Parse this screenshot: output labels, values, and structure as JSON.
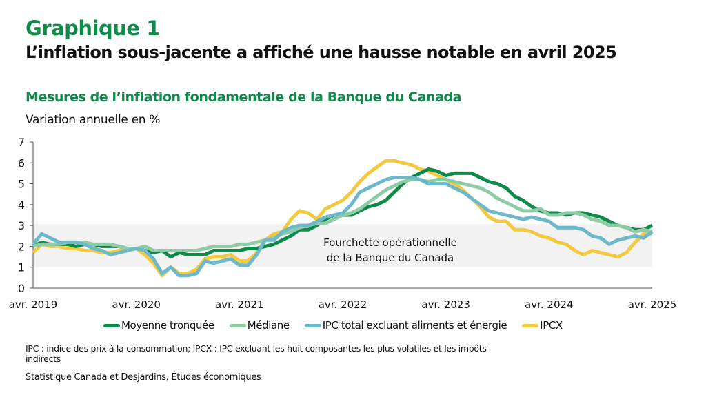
{
  "header": {
    "figure_label": "Graphique 1",
    "headline": "L’inflation sous-jacente a affiché une hausse notable en avril 2025"
  },
  "footer": {
    "note": "IPC : indice des prix à la consommation; IPCX : IPC excluant les huit composantes les plus volatiles et les impôts indirects",
    "source": "Statistique Canada et Desjardins, Études économiques"
  },
  "chart_data": {
    "type": "line",
    "title": "Mesures de l’inflation fondamentale de la Banque du Canada",
    "ylabel": "Variation annuelle en %",
    "xlabel": "",
    "ylim": [
      0,
      7
    ],
    "yticks": [
      "0",
      "1",
      "2",
      "3",
      "4",
      "5",
      "6",
      "7"
    ],
    "x_start": "2019-04",
    "x_end": "2025-04",
    "xtick_labels": [
      "avr. 2019",
      "avr. 2020",
      "avr. 2021",
      "avr. 2022",
      "avr. 2023",
      "avr. 2024",
      "avr. 2025"
    ],
    "grid": false,
    "legend_position": "bottom",
    "band": {
      "label_line1": "Fourchette opérationnelle",
      "label_line2": "de la Banque du Canada",
      "range": [
        1,
        3
      ],
      "color": "#f2f2f2"
    },
    "series": [
      {
        "name": "Moyenne tronquée",
        "color": "#0f8a4a",
        "values": [
          2.0,
          2.2,
          2.1,
          2.1,
          2.1,
          2.0,
          2.1,
          2.1,
          2.0,
          2.0,
          2.0,
          1.9,
          1.9,
          1.8,
          1.7,
          1.8,
          1.5,
          1.7,
          1.6,
          1.6,
          1.6,
          1.8,
          1.8,
          1.8,
          1.8,
          1.9,
          1.9,
          2.0,
          2.1,
          2.3,
          2.5,
          2.8,
          2.8,
          3.0,
          3.3,
          3.5,
          3.5,
          3.5,
          3.7,
          3.9,
          4.0,
          4.2,
          4.6,
          5.0,
          5.3,
          5.5,
          5.7,
          5.6,
          5.4,
          5.5,
          5.5,
          5.5,
          5.3,
          5.1,
          5.0,
          4.8,
          4.4,
          4.2,
          3.9,
          3.7,
          3.6,
          3.6,
          3.5,
          3.6,
          3.6,
          3.5,
          3.4,
          3.2,
          3.0,
          2.9,
          2.8,
          2.8,
          3.0
        ]
      },
      {
        "name": "Médiane",
        "color": "#8fcca6",
        "values": [
          2.0,
          2.1,
          2.1,
          2.1,
          2.2,
          2.2,
          2.2,
          2.1,
          2.1,
          2.1,
          2.0,
          1.9,
          1.9,
          2.0,
          1.8,
          1.8,
          1.8,
          1.8,
          1.8,
          1.8,
          1.9,
          2.0,
          2.0,
          2.0,
          2.1,
          2.1,
          2.2,
          2.3,
          2.4,
          2.6,
          2.7,
          2.9,
          3.0,
          3.1,
          3.1,
          3.3,
          3.5,
          3.6,
          3.8,
          4.1,
          4.4,
          4.7,
          4.9,
          5.1,
          5.2,
          5.2,
          5.1,
          5.2,
          5.2,
          5.1,
          5.0,
          4.9,
          4.8,
          4.6,
          4.3,
          4.1,
          3.9,
          3.7,
          3.7,
          3.8,
          3.5,
          3.5,
          3.6,
          3.6,
          3.5,
          3.3,
          3.2,
          3.0,
          3.0,
          2.9,
          2.7,
          2.8,
          2.7
        ]
      },
      {
        "name": "IPC total excluant aliments et énergie",
        "color": "#6db8c9",
        "values": [
          2.1,
          2.6,
          2.4,
          2.2,
          2.2,
          2.2,
          2.1,
          1.9,
          1.8,
          1.6,
          1.7,
          1.8,
          1.9,
          1.8,
          1.4,
          0.7,
          1.0,
          0.6,
          0.6,
          0.7,
          1.3,
          1.2,
          1.3,
          1.4,
          1.1,
          1.1,
          1.6,
          2.3,
          2.3,
          2.7,
          2.9,
          3.0,
          3.0,
          3.2,
          3.4,
          3.5,
          3.6,
          4.0,
          4.6,
          4.8,
          5.0,
          5.2,
          5.3,
          5.3,
          5.3,
          5.2,
          5.0,
          5.0,
          5.0,
          4.8,
          4.6,
          4.3,
          4.0,
          3.7,
          3.6,
          3.5,
          3.4,
          3.3,
          3.4,
          3.3,
          3.2,
          2.9,
          2.9,
          2.9,
          2.8,
          2.5,
          2.4,
          2.1,
          2.3,
          2.4,
          2.5,
          2.4,
          2.7
        ]
      },
      {
        "name": "IPCX",
        "color": "#f3c940",
        "values": [
          1.7,
          2.1,
          2.0,
          2.0,
          1.9,
          1.9,
          1.8,
          1.8,
          1.7,
          1.7,
          1.8,
          1.9,
          1.9,
          1.6,
          1.2,
          0.6,
          1.0,
          0.7,
          0.7,
          0.9,
          1.4,
          1.5,
          1.5,
          1.6,
          1.3,
          1.3,
          1.7,
          2.3,
          2.6,
          2.7,
          3.3,
          3.7,
          3.6,
          3.3,
          3.8,
          4.0,
          4.2,
          4.6,
          5.1,
          5.5,
          5.8,
          6.1,
          6.1,
          6.0,
          5.9,
          5.7,
          5.6,
          5.4,
          5.2,
          5.0,
          4.7,
          4.3,
          3.9,
          3.4,
          3.2,
          3.2,
          2.8,
          2.8,
          2.7,
          2.5,
          2.4,
          2.2,
          2.1,
          1.8,
          1.6,
          1.8,
          1.7,
          1.6,
          1.5,
          1.7,
          2.2,
          2.6,
          2.6
        ]
      }
    ]
  }
}
